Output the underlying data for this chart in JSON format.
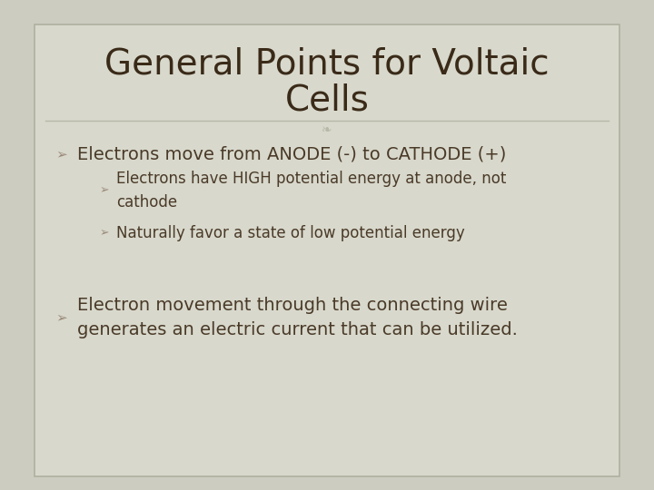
{
  "title_line1": "General Points for Voltaic",
  "title_line2": "Cells",
  "background_color": "#ccccc0",
  "inner_color": "#d8d8cc",
  "title_color": "#3a2a18",
  "text_color": "#4a3a28",
  "bullet_color": "#9a8a78",
  "title_fontsize": 28,
  "body_fontsize": 14,
  "sub_fontsize": 12,
  "bullet1": "Electrons move from ANODE (-) to CATHODE (+)",
  "sub_bullet1": "Electrons have HIGH potential energy at anode, not\ncathode",
  "sub_bullet2": "Naturally favor a state of low potential energy",
  "bullet2": "Electron movement through the connecting wire\ngenerates an electric current that can be utilized.",
  "divider_color": "#b8b8a8",
  "border_color": "#b0b0a0"
}
